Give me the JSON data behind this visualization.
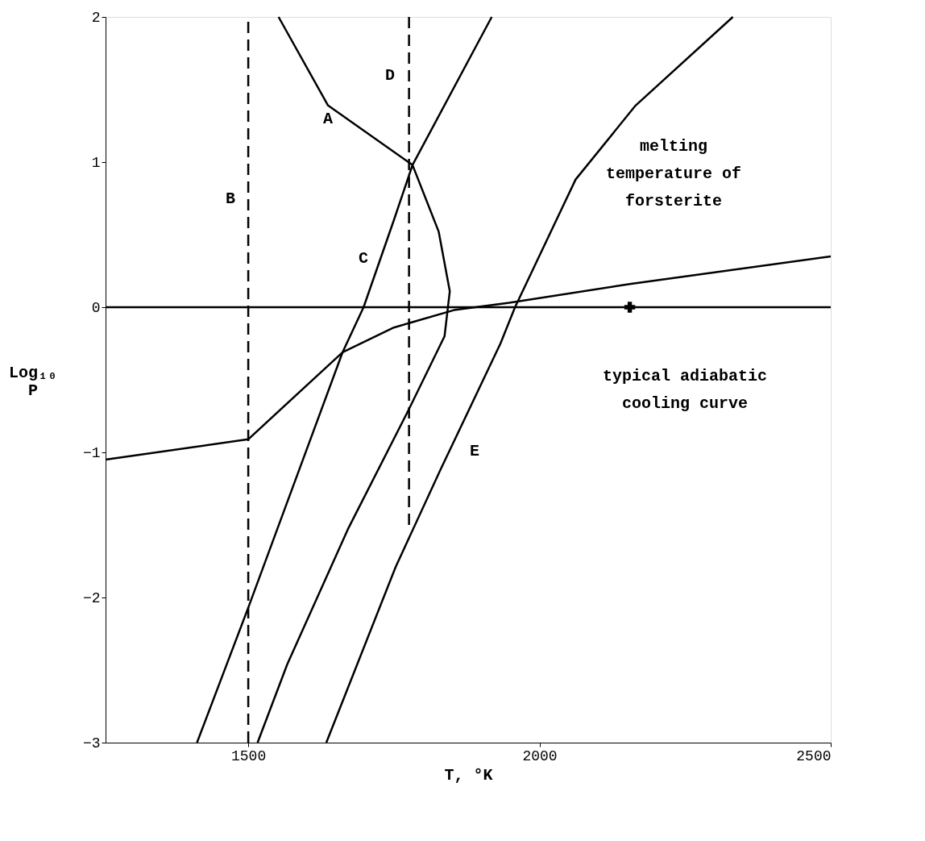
{
  "chart_data": {
    "type": "line",
    "xlabel": "T, °K",
    "ylabel": "Log₁₀ P",
    "xlim": [
      1255,
      2500
    ],
    "ylim": [
      -3,
      2
    ],
    "xticks": [
      1500,
      2000,
      2500
    ],
    "yticks": [
      -3,
      -2,
      -1,
      0,
      1,
      2
    ],
    "grid": false,
    "marker": "none",
    "series": [
      {
        "color": "#000000",
        "x": [
          1255,
          1500,
          1662,
          1750,
          1853,
          1948,
          2155,
          2500
        ],
        "values": [
          -1.05,
          -0.91,
          -0.31,
          -0.14,
          -0.02,
          0.03,
          0.16,
          0.35
        ]
      },
      {
        "color": "#000000",
        "x": [
          1412,
          1500,
          1662,
          1698,
          1750,
          1782,
          1918
        ],
        "values": [
          -3.0,
          -2.07,
          -0.31,
          0.0,
          0.6,
          0.98,
          2.0
        ]
      },
      {
        "color": "#000000",
        "x": [
          1552,
          1637,
          1782,
          1827,
          1846,
          1837,
          1775,
          1671,
          1567,
          1516
        ],
        "values": [
          2.0,
          1.39,
          0.98,
          0.52,
          0.11,
          -0.2,
          -0.71,
          -1.53,
          -2.46,
          -3.0
        ]
      },
      {
        "color": "#000000",
        "x": [
          1634,
          1753,
          1830,
          1933,
          1958,
          2062,
          2165,
          2332
        ],
        "values": [
          -3.0,
          -1.79,
          -1.12,
          -0.25,
          0.0,
          0.88,
          1.39,
          2.0
        ]
      },
      {
        "color": "#000000",
        "line_style": "dashed",
        "x": [
          1500,
          1500
        ],
        "values": [
          -3,
          2
        ]
      },
      {
        "color": "#000000",
        "line_style": "dashed",
        "x": [
          1776,
          1776
        ],
        "values": [
          2,
          -1.5
        ]
      },
      {
        "type": "scatter",
        "marker": "cross",
        "color": "#000000",
        "x": [
          2155
        ],
        "values": [
          0
        ]
      }
    ],
    "ref_lines": [
      {
        "axis": "y",
        "value": 0,
        "color": "#000000"
      }
    ],
    "annotations": [
      "A",
      "B",
      "C",
      "D",
      "E",
      "melting temperature of forsterite",
      "typical adiabatic cooling curve"
    ]
  }
}
